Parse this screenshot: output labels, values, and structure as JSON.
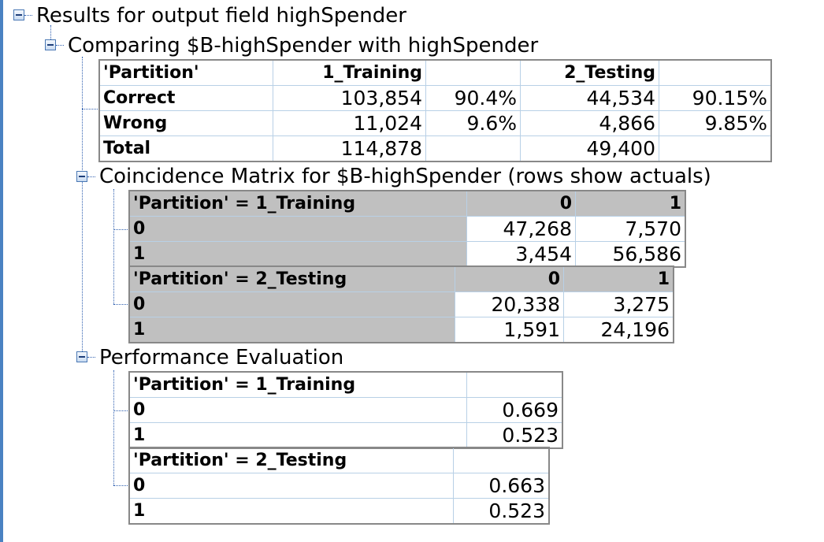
{
  "root": {
    "label": "Results for output field highSpender"
  },
  "comparing": {
    "label": "Comparing $B-highSpender with highSpender",
    "header": [
      "'Partition'",
      "1_Training",
      "",
      "2_Testing",
      ""
    ],
    "rows": [
      [
        "Correct",
        "103,854",
        "90.4%",
        "44,534",
        "90.15%"
      ],
      [
        "Wrong",
        "11,024",
        "9.6%",
        "4,866",
        "9.85%"
      ],
      [
        "Total",
        "114,878",
        "",
        "49,400",
        ""
      ]
    ]
  },
  "coincidence": {
    "label": "Coincidence Matrix for $B-highSpender (rows show actuals)",
    "tables": [
      {
        "header": [
          "'Partition' = 1_Training",
          "0",
          "1"
        ],
        "rows": [
          [
            "0",
            "47,268",
            "7,570"
          ],
          [
            "1",
            "3,454",
            "56,586"
          ]
        ]
      },
      {
        "header": [
          "'Partition' = 2_Testing",
          "0",
          "1"
        ],
        "rows": [
          [
            "0",
            "20,338",
            "3,275"
          ],
          [
            "1",
            "1,591",
            "24,196"
          ]
        ]
      }
    ]
  },
  "performance": {
    "label": "Performance Evaluation",
    "tables": [
      {
        "header": [
          "'Partition' = 1_Training",
          ""
        ],
        "rows": [
          [
            "0",
            "0.669"
          ],
          [
            "1",
            "0.523"
          ]
        ]
      },
      {
        "header": [
          "'Partition' = 2_Testing",
          ""
        ],
        "rows": [
          [
            "0",
            "0.663"
          ],
          [
            "1",
            "0.523"
          ]
        ]
      }
    ]
  }
}
